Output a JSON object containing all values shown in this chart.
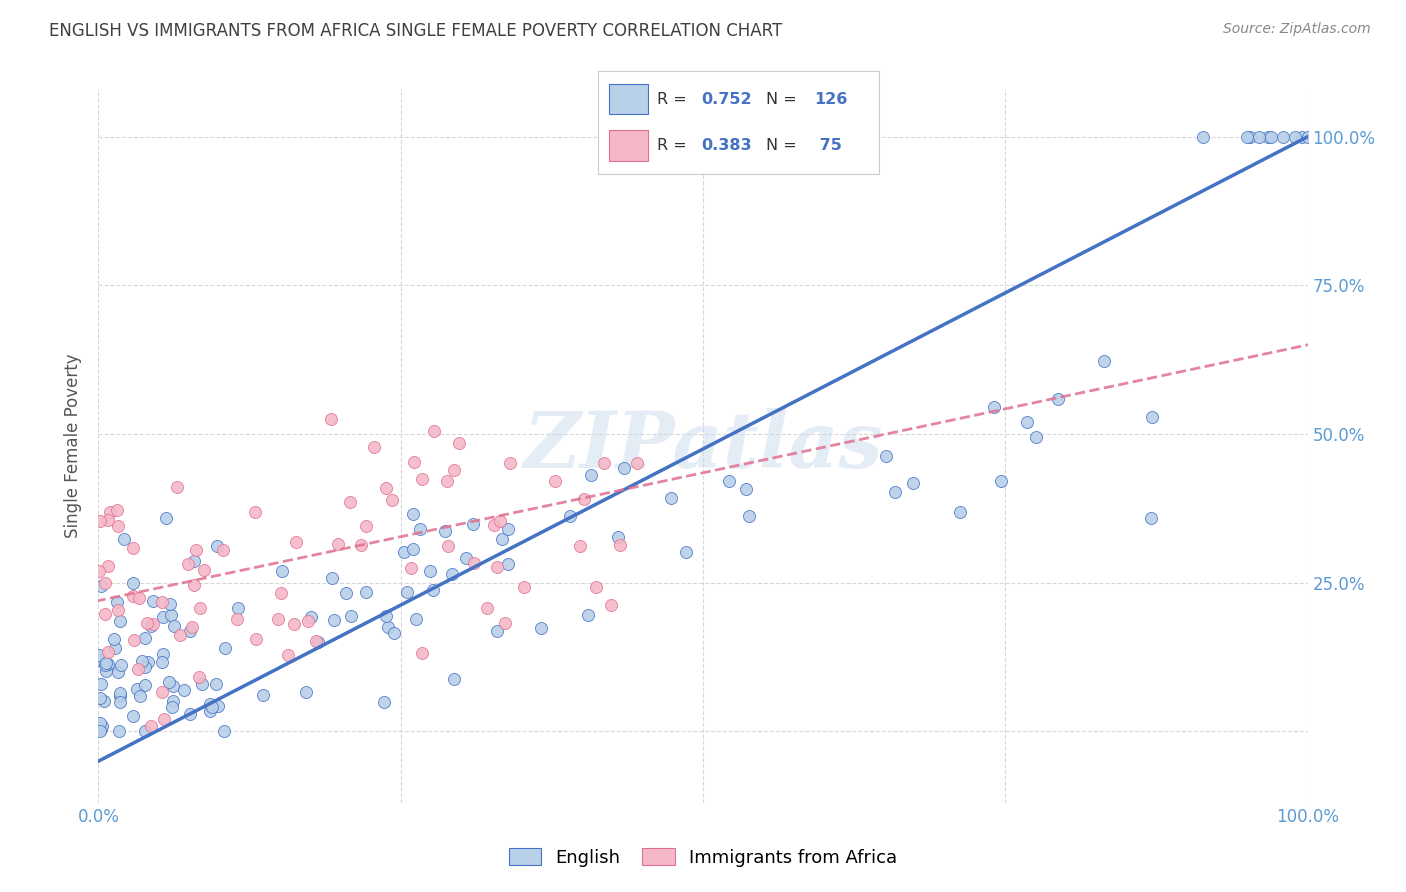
{
  "title": "ENGLISH VS IMMIGRANTS FROM AFRICA SINGLE FEMALE POVERTY CORRELATION CHART",
  "source": "Source: ZipAtlas.com",
  "ylabel": "Single Female Poverty",
  "xlim": [
    0.0,
    1.0
  ],
  "ylim": [
    -0.12,
    1.08
  ],
  "x_ticks": [
    0.0,
    0.25,
    0.5,
    0.75,
    1.0
  ],
  "y_ticks": [
    0.0,
    0.25,
    0.5,
    0.75,
    1.0
  ],
  "x_tick_labels": [
    "0.0%",
    "",
    "",
    "",
    "100.0%"
  ],
  "y_tick_labels_right": [
    "",
    "25.0%",
    "50.0%",
    "75.0%",
    "100.0%"
  ],
  "english_fill_color": "#b8d0e8",
  "africa_fill_color": "#f5b8c8",
  "english_edge_color": "#4472c4",
  "africa_edge_color": "#e07090",
  "english_line_color": "#4472c4",
  "africa_line_color": "#e07090",
  "english_R": 0.752,
  "english_N": 126,
  "africa_R": 0.383,
  "africa_N": 75,
  "watermark": "ZIPatlas",
  "background_color": "#ffffff",
  "grid_color": "#d8d8d8",
  "tick_color": "#5b9bd5",
  "title_color": "#404040",
  "source_color": "#888888",
  "ylabel_color": "#555555",
  "legend_edge_color": "#cccccc",
  "legend_R_color": "#333333",
  "legend_val_color": "#4472c4"
}
